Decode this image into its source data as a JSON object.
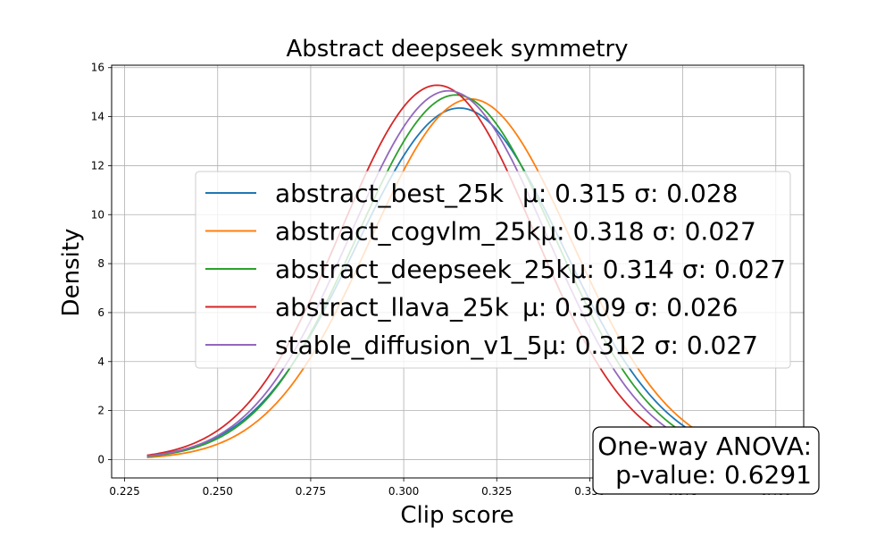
{
  "chart_data": {
    "type": "line",
    "title": "Abstract deepseek symmetry",
    "xlabel": "Clip score",
    "ylabel": "Density",
    "xlim": [
      0.2215,
      0.4075
    ],
    "ylim": [
      -0.75,
      16.1
    ],
    "xticks": [
      0.225,
      0.25,
      0.275,
      0.3,
      0.325,
      0.35,
      0.375,
      0.4
    ],
    "xtick_labels": [
      "0.225",
      "0.250",
      "0.275",
      "0.300",
      "0.325",
      "0.350",
      "0.375",
      "0.400"
    ],
    "yticks": [
      0,
      2,
      4,
      6,
      8,
      10,
      12,
      14,
      16
    ],
    "ytick_labels": [
      "0",
      "2",
      "4",
      "6",
      "8",
      "10",
      "12",
      "14",
      "16"
    ],
    "grid": true,
    "legend_position": "center-right",
    "series": [
      {
        "name": "abstract_best_25k",
        "stats": "μ: 0.315 σ: 0.028",
        "mu": 0.315,
        "sigma": 0.0278,
        "x_range": [
          0.231,
          0.398
        ],
        "color": "#1f77b4"
      },
      {
        "name": "abstract_cogvlm_25k",
        "stats": "μ: 0.318 σ: 0.027",
        "mu": 0.318,
        "sigma": 0.0271,
        "x_range": [
          0.231,
          0.398
        ],
        "color": "#ff7f0e"
      },
      {
        "name": "abstract_deepseek_25k",
        "stats": "μ: 0.314 σ: 0.027",
        "mu": 0.314,
        "sigma": 0.0268,
        "x_range": [
          0.231,
          0.398
        ],
        "color": "#2ca02c"
      },
      {
        "name": "abstract_llava_25k",
        "stats": "μ: 0.309 σ: 0.026",
        "mu": 0.309,
        "sigma": 0.0261,
        "x_range": [
          0.231,
          0.398
        ],
        "color": "#d62728"
      },
      {
        "name": "stable_diffusion_v1_5",
        "stats": "μ: 0.312 σ: 0.027",
        "mu": 0.312,
        "sigma": 0.0265,
        "x_range": [
          0.231,
          0.398
        ],
        "color": "#9467bd"
      }
    ],
    "annotation": {
      "line1": "One-way ANOVA:",
      "line2": "p-value: 0.6291"
    }
  }
}
